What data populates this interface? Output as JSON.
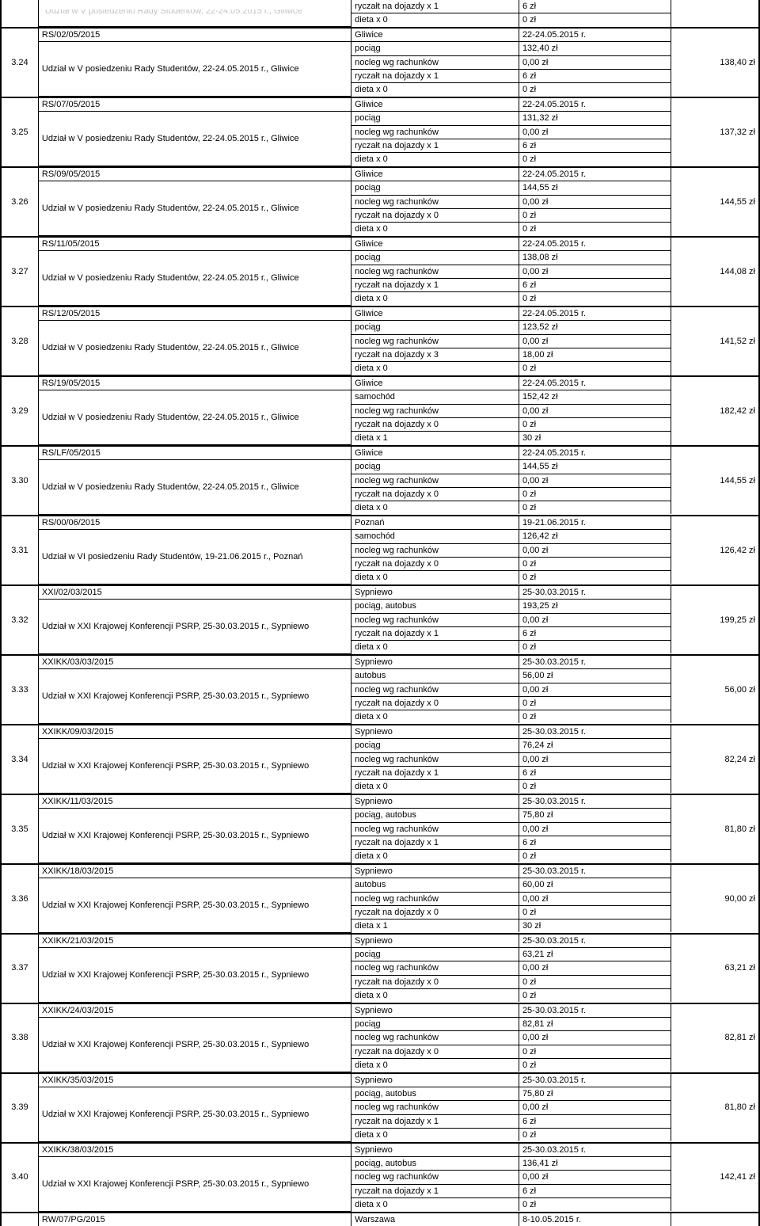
{
  "fragment_top": {
    "desc_partial": "Udział w V posiedzeniu Rady Studentów, 22-24.05.2015 r., Gliwice",
    "rows": [
      {
        "item": "ryczałt na dojazdy x 1",
        "val": "6 zł"
      },
      {
        "item": "dieta x 0",
        "val": "0 zł"
      }
    ]
  },
  "groups": [
    {
      "id": "3.24",
      "ref": "RS/02/05/2015",
      "desc": "Udział w V posiedzeniu Rady Studentów, 22-24.05.2015 r., Gliwice",
      "place": "Gliwice",
      "dates": "22-24.05.2015 r.",
      "total": "138,40 zł",
      "rows": [
        {
          "item": "pociąg",
          "val": "132,40 zł"
        },
        {
          "item": "nocleg wg rachunków",
          "val": "0,00 zł"
        },
        {
          "item": "ryczałt na dojazdy x 1",
          "val": "6 zł"
        },
        {
          "item": "dieta x 0",
          "val": "0 zł"
        }
      ]
    },
    {
      "id": "3.25",
      "ref": "RS/07/05/2015",
      "desc": "Udział w V posiedzeniu Rady Studentów, 22-24.05.2015 r., Gliwice",
      "place": "Gliwice",
      "dates": "22-24.05.2015 r.",
      "total": "137,32 zł",
      "rows": [
        {
          "item": "pociąg",
          "val": "131,32 zł"
        },
        {
          "item": "nocleg wg rachunków",
          "val": "0,00 zł"
        },
        {
          "item": "ryczałt na dojazdy x 1",
          "val": "6 zł"
        },
        {
          "item": "dieta x 0",
          "val": "0 zł"
        }
      ]
    },
    {
      "id": "3.26",
      "ref": "RS/09/05/2015",
      "desc": "Udział w V posiedzeniu Rady Studentów, 22-24.05.2015 r., Gliwice",
      "place": "Gliwice",
      "dates": "22-24.05.2015 r.",
      "total": "144,55 zł",
      "rows": [
        {
          "item": "pociąg",
          "val": "144,55 zł"
        },
        {
          "item": "nocleg wg rachunków",
          "val": "0,00 zł"
        },
        {
          "item": "ryczałt na dojazdy x 0",
          "val": "0 zł"
        },
        {
          "item": "dieta x 0",
          "val": "0 zł"
        }
      ]
    },
    {
      "id": "3.27",
      "ref": "RS/11/05/2015",
      "desc": "Udział w V posiedzeniu Rady Studentów, 22-24.05.2015 r., Gliwice",
      "place": "Gliwice",
      "dates": "22-24.05.2015 r.",
      "total": "144,08 zł",
      "rows": [
        {
          "item": "pociąg",
          "val": "138,08 zł"
        },
        {
          "item": "nocleg wg rachunków",
          "val": "0,00 zł"
        },
        {
          "item": "ryczałt na dojazdy x 1",
          "val": "6 zł"
        },
        {
          "item": "dieta x 0",
          "val": "0 zł"
        }
      ]
    },
    {
      "id": "3.28",
      "ref": "RS/12/05/2015",
      "desc": "Udział w V posiedzeniu Rady Studentów, 22-24.05.2015 r., Gliwice",
      "place": "Gliwice",
      "dates": "22-24.05.2015 r.",
      "total": "141,52 zł",
      "rows": [
        {
          "item": "pociąg",
          "val": "123,52 zł"
        },
        {
          "item": "nocleg wg rachunków",
          "val": "0,00 zł"
        },
        {
          "item": "ryczałt na dojazdy x 3",
          "val": "18,00 zł"
        },
        {
          "item": "dieta x 0",
          "val": "0 zł"
        }
      ]
    },
    {
      "id": "3.29",
      "ref": "RS/19/05/2015",
      "desc": "Udział w V posiedzeniu Rady Studentów, 22-24.05.2015 r., Gliwice",
      "place": "Gliwice",
      "dates": "22-24.05.2015 r.",
      "total": "182,42 zł",
      "rows": [
        {
          "item": "samochód",
          "val": "152,42 zł"
        },
        {
          "item": "nocleg wg rachunków",
          "val": "0,00 zł"
        },
        {
          "item": "ryczałt na dojazdy x 0",
          "val": "0 zł"
        },
        {
          "item": "dieta x 1",
          "val": "30 zł"
        }
      ]
    },
    {
      "id": "3.30",
      "ref": "RS/LF/05/2015",
      "desc": "Udział w V posiedzeniu Rady Studentów, 22-24.05.2015 r., Gliwice",
      "place": "Gliwice",
      "dates": "22-24.05.2015 r.",
      "total": "144,55 zł",
      "rows": [
        {
          "item": "pociąg",
          "val": "144,55 zł"
        },
        {
          "item": "nocleg wg rachunków",
          "val": "0,00 zł"
        },
        {
          "item": "ryczałt na dojazdy x 0",
          "val": "0 zł"
        },
        {
          "item": "dieta x 0",
          "val": "0 zł"
        }
      ]
    },
    {
      "id": "3.31",
      "ref": "RS/00/06/2015",
      "desc": "Udział w VI posiedzeniu Rady Studentów, 19-21.06.2015 r., Poznań",
      "place": "Poznań",
      "dates": "19-21.06.2015 r.",
      "total": "126,42 zł",
      "rows": [
        {
          "item": "samochód",
          "val": "126,42 zł"
        },
        {
          "item": "nocleg wg rachunków",
          "val": "0,00 zł"
        },
        {
          "item": "ryczałt na dojazdy x 0",
          "val": "0 zł"
        },
        {
          "item": "dieta x 0",
          "val": "0 zł"
        }
      ]
    },
    {
      "id": "3.32",
      "ref": "XXI/02/03/2015",
      "desc": "Udział w XXI Krajowej Konferencji PSRP, 25-30.03.2015 r., Sypniewo",
      "place": "Sypniewo",
      "dates": "25-30.03.2015 r.",
      "total": "199,25 zł",
      "rows": [
        {
          "item": "pociąg, autobus",
          "val": "193,25 zł"
        },
        {
          "item": "nocleg wg rachunków",
          "val": "0,00 zł"
        },
        {
          "item": "ryczałt na dojazdy x 1",
          "val": "6 zł"
        },
        {
          "item": "dieta x 0",
          "val": "0 zł"
        }
      ]
    },
    {
      "id": "3.33",
      "ref": "XXIKK/03/03/2015",
      "desc": "Udział w XXI Krajowej Konferencji PSRP, 25-30.03.2015 r., Sypniewo",
      "place": "Sypniewo",
      "dates": "25-30.03.2015 r.",
      "total": "56,00 zł",
      "rows": [
        {
          "item": "autobus",
          "val": "56,00 zł"
        },
        {
          "item": "nocleg wg rachunków",
          "val": "0,00 zł"
        },
        {
          "item": "ryczałt na dojazdy x 0",
          "val": "0 zł"
        },
        {
          "item": "dieta x 0",
          "val": "0 zł"
        }
      ]
    },
    {
      "id": "3.34",
      "ref": "XXIKK/09/03/2015",
      "desc": "Udział w XXI Krajowej Konferencji PSRP, 25-30.03.2015 r., Sypniewo",
      "place": "Sypniewo",
      "dates": "25-30.03.2015 r.",
      "total": "82,24 zł",
      "rows": [
        {
          "item": "pociąg",
          "val": "76,24 zł"
        },
        {
          "item": "nocleg wg rachunków",
          "val": "0,00 zł"
        },
        {
          "item": "ryczałt na dojazdy x 1",
          "val": "6 zł"
        },
        {
          "item": "dieta x 0",
          "val": "0 zł"
        }
      ]
    },
    {
      "id": "3.35",
      "ref": "XXIKK/11/03/2015",
      "desc": "Udział w XXI Krajowej Konferencji PSRP, 25-30.03.2015 r., Sypniewo",
      "place": "Sypniewo",
      "dates": "25-30.03.2015 r.",
      "total": "81,80 zł",
      "rows": [
        {
          "item": "pociąg, autobus",
          "val": "75,80 zł"
        },
        {
          "item": "nocleg wg rachunków",
          "val": "0,00 zł"
        },
        {
          "item": "ryczałt na dojazdy x 1",
          "val": "6 zł"
        },
        {
          "item": "dieta x 0",
          "val": "0 zł"
        }
      ]
    },
    {
      "id": "3.36",
      "ref": "XXIKK/18/03/2015",
      "desc": "Udział w XXI Krajowej Konferencji PSRP, 25-30.03.2015 r., Sypniewo",
      "place": "Sypniewo",
      "dates": "25-30.03.2015 r.",
      "total": "90,00 zł",
      "rows": [
        {
          "item": "autobus",
          "val": "60,00 zł"
        },
        {
          "item": "nocleg wg rachunków",
          "val": "0,00 zł"
        },
        {
          "item": "ryczałt na dojazdy x 0",
          "val": "0 zł"
        },
        {
          "item": "dieta x 1",
          "val": "30 zł"
        }
      ]
    },
    {
      "id": "3.37",
      "ref": "XXIKK/21/03/2015",
      "desc": "Udział w XXI Krajowej Konferencji PSRP, 25-30.03.2015 r., Sypniewo",
      "place": "Sypniewo",
      "dates": "25-30.03.2015 r.",
      "total": "63,21 zł",
      "rows": [
        {
          "item": "pociąg",
          "val": "63,21 zł"
        },
        {
          "item": "nocleg wg rachunków",
          "val": "0,00 zł"
        },
        {
          "item": "ryczałt na dojazdy x 0",
          "val": "0 zł"
        },
        {
          "item": "dieta x 0",
          "val": "0 zł"
        }
      ]
    },
    {
      "id": "3.38",
      "ref": "XXIKK/24/03/2015",
      "desc": "Udział w XXI Krajowej Konferencji PSRP, 25-30.03.2015 r., Sypniewo",
      "place": "Sypniewo",
      "dates": "25-30.03.2015 r.",
      "total": "82,81 zł",
      "rows": [
        {
          "item": "pociąg",
          "val": "82,81 zł"
        },
        {
          "item": "nocleg wg rachunków",
          "val": "0,00 zł"
        },
        {
          "item": "ryczałt na dojazdy x 0",
          "val": "0 zł"
        },
        {
          "item": "dieta x 0",
          "val": "0 zł"
        }
      ]
    },
    {
      "id": "3.39",
      "ref": "XXIKK/35/03/2015",
      "desc": "Udział w XXI Krajowej Konferencji PSRP, 25-30.03.2015 r., Sypniewo",
      "place": "Sypniewo",
      "dates": "25-30.03.2015 r.",
      "total": "81,80 zł",
      "rows": [
        {
          "item": "pociąg, autobus",
          "val": "75,80 zł"
        },
        {
          "item": "nocleg wg rachunków",
          "val": "0,00 zł"
        },
        {
          "item": "ryczałt na dojazdy x 1",
          "val": "6 zł"
        },
        {
          "item": "dieta x 0",
          "val": "0 zł"
        }
      ]
    },
    {
      "id": "3.40",
      "ref": "XXIKK/38/03/2015",
      "desc": "Udział w XXI Krajowej Konferencji PSRP, 25-30.03.2015 r., Sypniewo",
      "place": "Sypniewo",
      "dates": "25-30.03.2015 r.",
      "total": "142,41 zł",
      "rows": [
        {
          "item": "pociąg, autobus",
          "val": "136,41 zł"
        },
        {
          "item": "nocleg wg rachunków",
          "val": "0,00 zł"
        },
        {
          "item": "ryczałt na dojazdy x 1",
          "val": "6 zł"
        },
        {
          "item": "dieta x 0",
          "val": "0 zł"
        }
      ]
    }
  ],
  "bottom_strip": {
    "ref": "RW/07/PG/2015",
    "place": "Warszawa",
    "dates": "8-10.05.2015 r."
  }
}
